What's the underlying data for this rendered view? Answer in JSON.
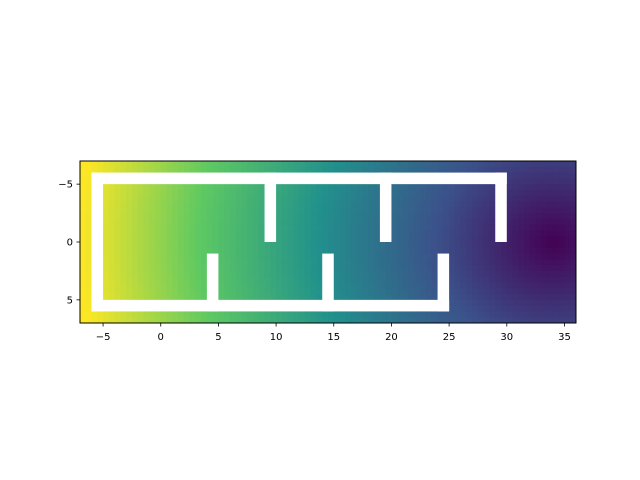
{
  "chart_data": {
    "type": "heatmap",
    "title": "",
    "xlabel": "",
    "ylabel": "",
    "xlim": [
      -7,
      36
    ],
    "ylim": [
      7,
      -7
    ],
    "y_inverted": true,
    "colormap": "viridis",
    "colormap_stops": [
      "#440154",
      "#3b528b",
      "#21918c",
      "#5ec962",
      "#fde725"
    ],
    "field_peak_value_at": [
      -7,
      0
    ],
    "field_min_value_at": [
      34,
      0
    ],
    "xticks": [
      -5,
      0,
      5,
      10,
      15,
      20,
      25,
      30,
      35
    ],
    "yticks": [
      -5,
      0,
      5
    ],
    "x_tick_labels": [
      "−5",
      "0",
      "5",
      "10",
      "15",
      "20",
      "25",
      "30",
      "35"
    ],
    "y_tick_labels": [
      "−5",
      "0",
      "5"
    ],
    "walls": [
      {
        "x": [
          -6,
          30
        ],
        "y": [
          -6,
          -5
        ]
      },
      {
        "x": [
          -6,
          -5
        ],
        "y": [
          -6,
          6
        ]
      },
      {
        "x": [
          -6,
          25
        ],
        "y": [
          5,
          6
        ]
      },
      {
        "x": [
          24,
          25
        ],
        "y": [
          1,
          6
        ]
      },
      {
        "x": [
          29,
          30
        ],
        "y": [
          -6,
          0
        ]
      },
      {
        "x": [
          4,
          5
        ],
        "y": [
          1,
          6
        ]
      },
      {
        "x": [
          14,
          15
        ],
        "y": [
          1,
          6
        ]
      },
      {
        "x": [
          9,
          10
        ],
        "y": [
          -6,
          0
        ]
      },
      {
        "x": [
          19,
          20
        ],
        "y": [
          -6,
          0
        ]
      }
    ],
    "grid": false,
    "legend": "none"
  }
}
